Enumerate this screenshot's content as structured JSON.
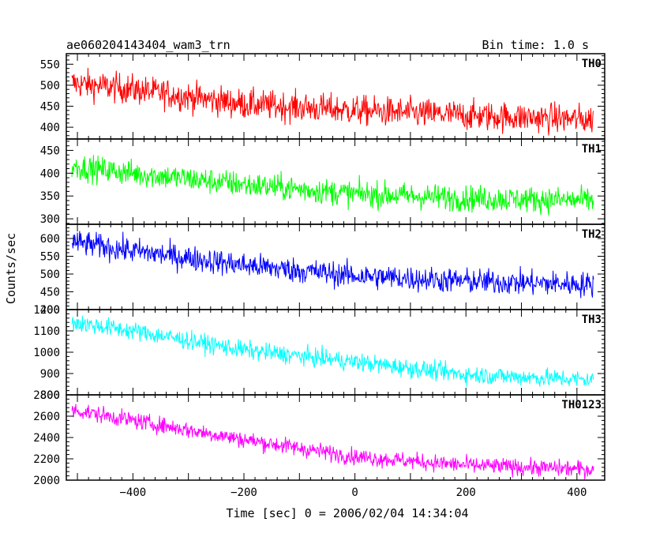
{
  "header": {
    "title": "ae060204143404_wam3_trn",
    "bin_time": "Bin time: 1.0 s"
  },
  "chart_data": {
    "type": "line",
    "xlabel": "Time [sec] 0 = 2006/02/04 14:34:04",
    "ylabel": "Counts/sec",
    "xlim": [
      -520,
      450
    ],
    "x_range": [
      -510,
      430
    ],
    "x_ticks": [
      -400,
      -200,
      0,
      200,
      400
    ],
    "x_tick_labels": [
      "−400",
      "−200",
      "0",
      "200",
      "400"
    ],
    "grid": false,
    "panels": [
      {
        "name": "TH0",
        "color": "#ff0000",
        "ylim": [
          372,
          575
        ],
        "yticks": [
          400,
          450,
          500,
          550
        ],
        "trend": [
          [
            -510,
            505
          ],
          [
            -400,
            490
          ],
          [
            -200,
            455
          ],
          [
            0,
            440
          ],
          [
            200,
            428
          ],
          [
            430,
            418
          ]
        ],
        "noise": 25
      },
      {
        "name": "TH1",
        "color": "#00ff00",
        "ylim": [
          288,
          475
        ],
        "yticks": [
          300,
          350,
          400,
          450
        ],
        "trend": [
          [
            -510,
            415
          ],
          [
            -400,
            400
          ],
          [
            -200,
            375
          ],
          [
            0,
            355
          ],
          [
            200,
            345
          ],
          [
            430,
            340
          ]
        ],
        "noise": 20
      },
      {
        "name": "TH2",
        "color": "#0000ff",
        "ylim": [
          400,
          640
        ],
        "yticks": [
          400,
          450,
          500,
          550,
          600
        ],
        "trend": [
          [
            -510,
            590
          ],
          [
            -400,
            565
          ],
          [
            -200,
            525
          ],
          [
            0,
            495
          ],
          [
            200,
            480
          ],
          [
            430,
            470
          ]
        ],
        "noise": 25
      },
      {
        "name": "TH3",
        "color": "#00ffff",
        "ylim": [
          800,
          1200
        ],
        "yticks": [
          800,
          900,
          1000,
          1100,
          1200
        ],
        "trend": [
          [
            -510,
            1140
          ],
          [
            -400,
            1100
          ],
          [
            -200,
            1010
          ],
          [
            0,
            955
          ],
          [
            200,
            895
          ],
          [
            430,
            870
          ]
        ],
        "noise": 30
      },
      {
        "name": "TH0123",
        "color": "#ff00ff",
        "ylim": [
          2000,
          2800
        ],
        "yticks": [
          2000,
          2200,
          2400,
          2600,
          2800
        ],
        "trend": [
          [
            -510,
            2660
          ],
          [
            -400,
            2560
          ],
          [
            -200,
            2380
          ],
          [
            0,
            2220
          ],
          [
            200,
            2140
          ],
          [
            430,
            2100
          ]
        ],
        "noise": 55
      }
    ]
  }
}
